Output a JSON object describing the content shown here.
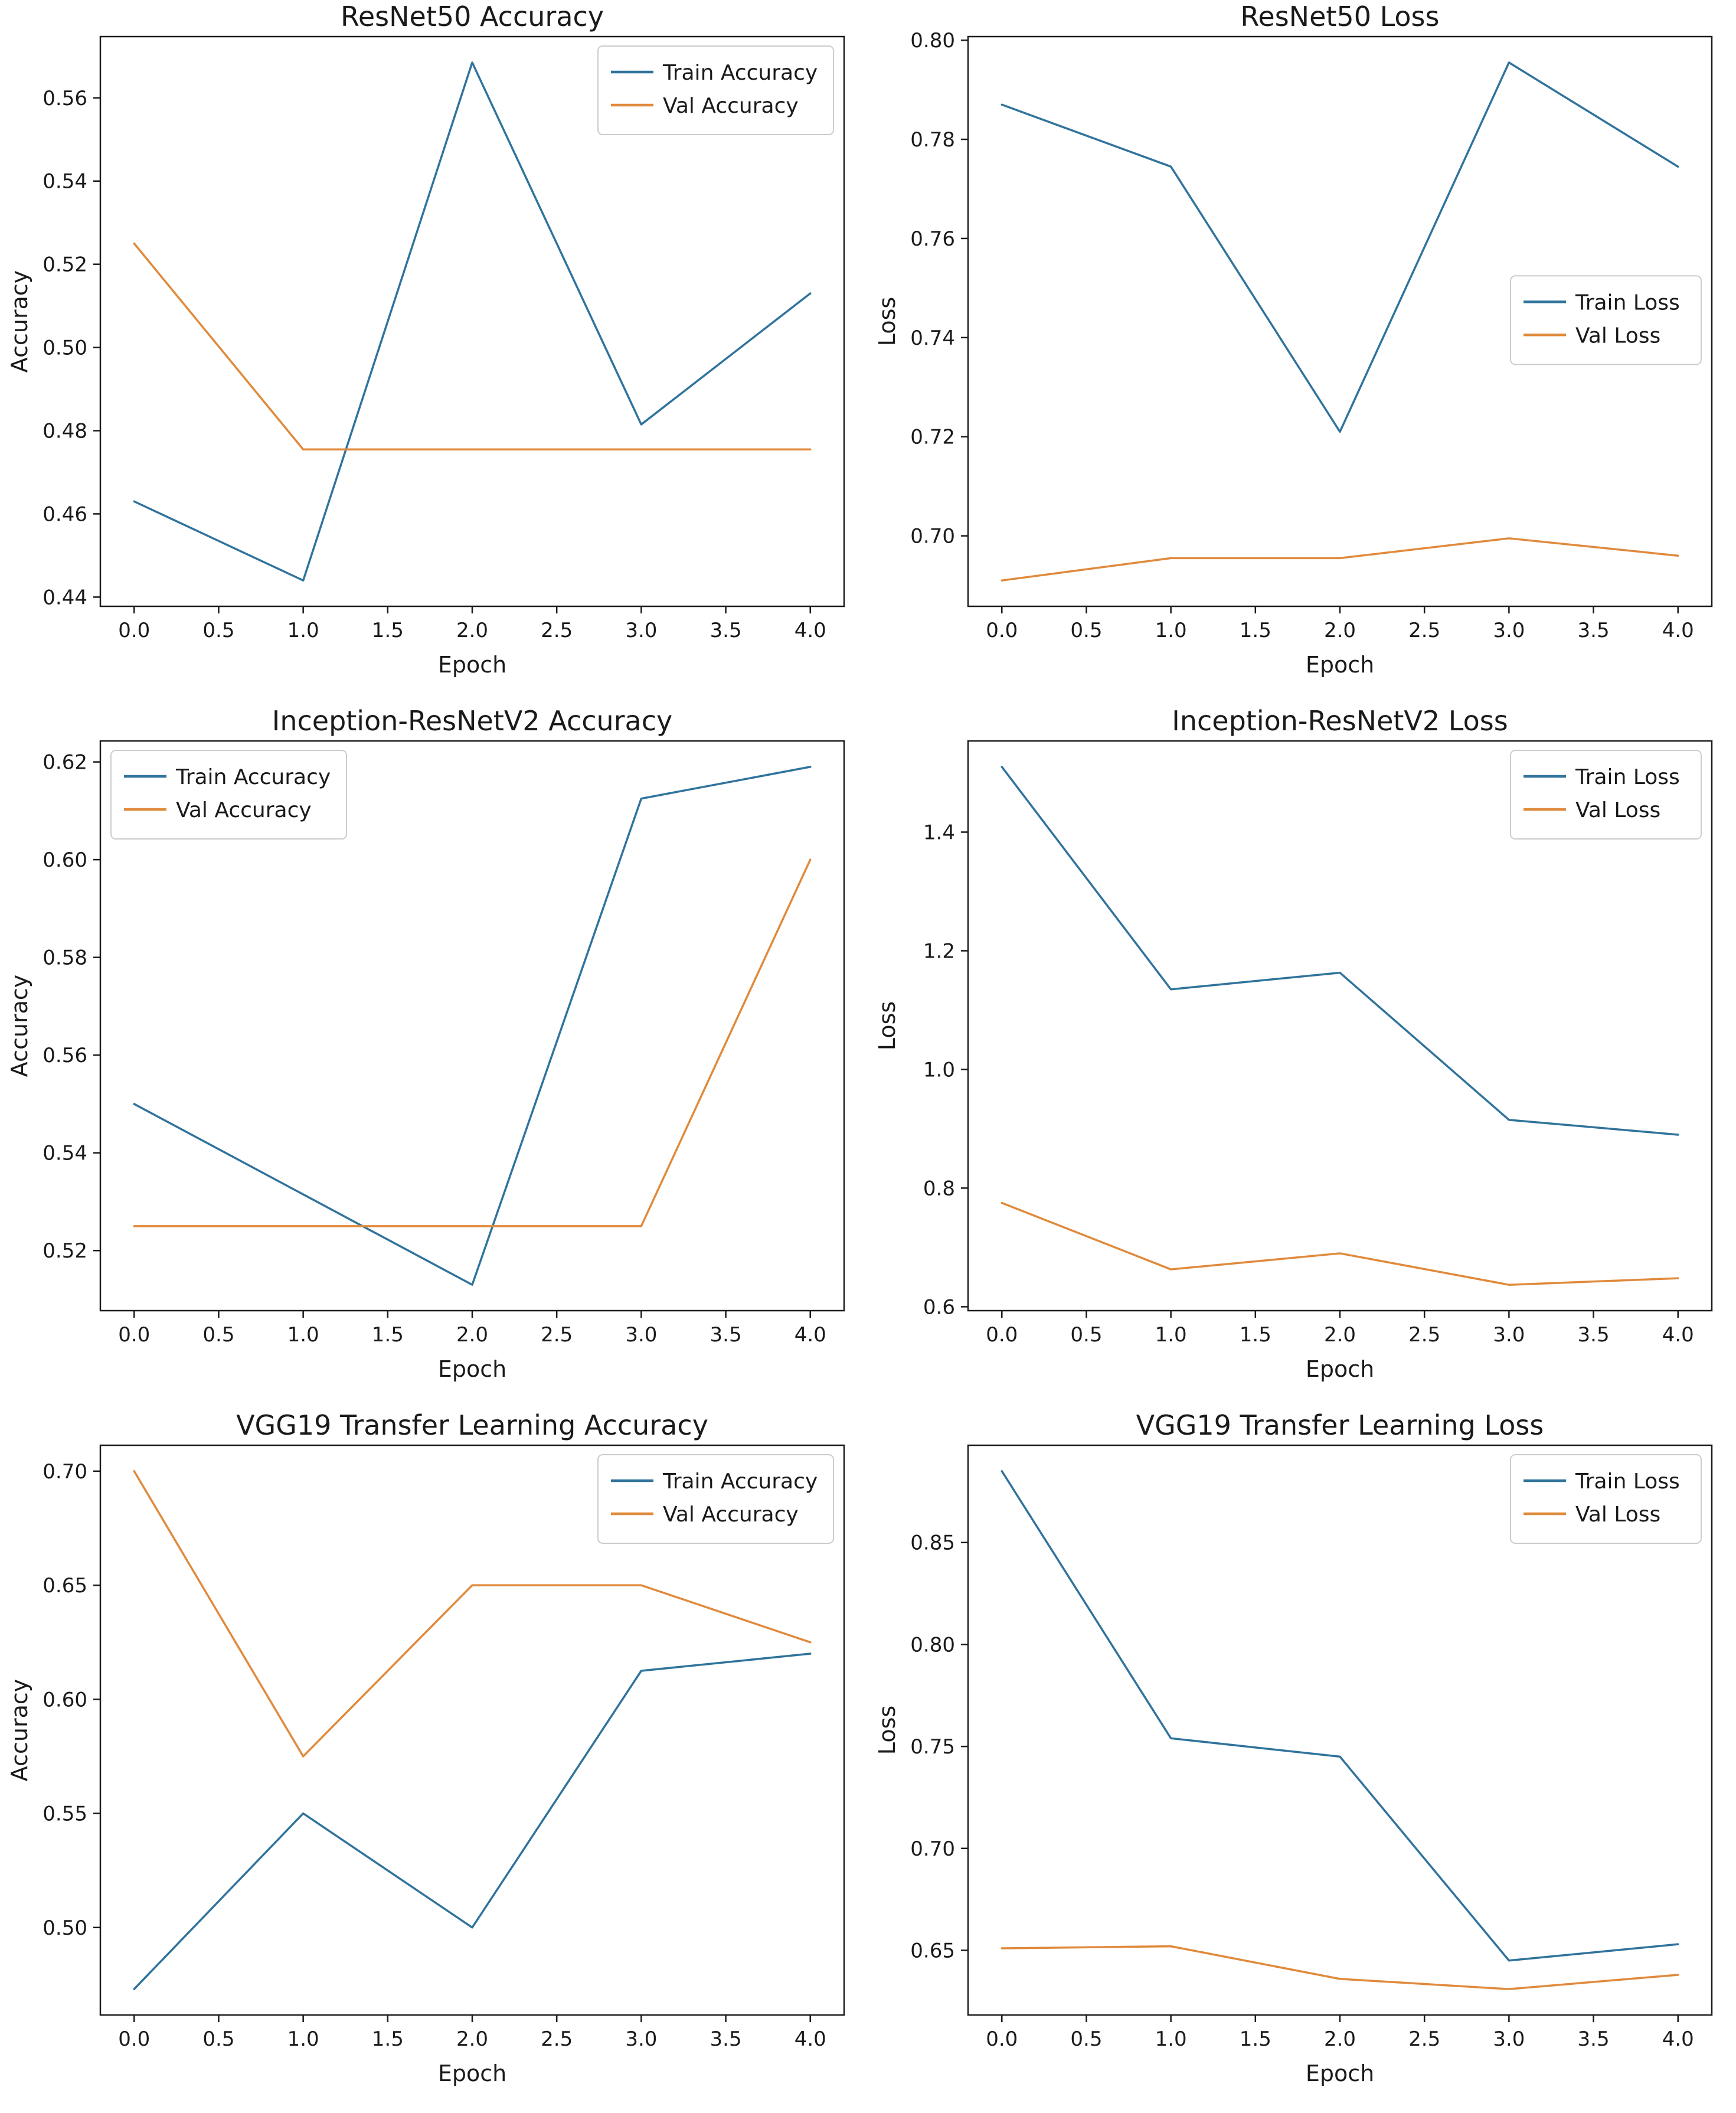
{
  "page": {
    "background": "#ffffff"
  },
  "colors": {
    "train": "#30739c",
    "val": "#e08a3c",
    "axis": "#1a1a1a",
    "legend_bg": "#ffffff",
    "legend_border": "#cccccc"
  },
  "chart_data": [
    {
      "type": "line",
      "title": "ResNet50 Accuracy",
      "xlabel": "Epoch",
      "ylabel": "Accuracy",
      "x": [
        0,
        1,
        2,
        3,
        4
      ],
      "xlim": [
        -0.2,
        4.2
      ],
      "ylim": [
        0.43778,
        0.57473
      ],
      "xticks": [
        0,
        0.5,
        1,
        1.5,
        2,
        2.5,
        3,
        3.5,
        4
      ],
      "xtick_labels": [
        "0.0",
        "0.5",
        "1.0",
        "1.5",
        "2.0",
        "2.5",
        "3.0",
        "3.5",
        "4.0"
      ],
      "yticks": [
        0.44,
        0.46,
        0.48,
        0.5,
        0.52,
        0.54,
        0.56
      ],
      "ytick_labels": [
        "0.44",
        "0.46",
        "0.48",
        "0.50",
        "0.52",
        "0.54",
        "0.56"
      ],
      "grid": false,
      "legend_position": "top-right",
      "series": [
        {
          "name": "Train Accuracy",
          "color_key": "train",
          "values": [
            0.463,
            0.444,
            0.5685,
            0.4815,
            0.513
          ]
        },
        {
          "name": "Val Accuracy",
          "color_key": "val",
          "values": [
            0.525,
            0.4755,
            0.4755,
            0.4755,
            0.4755
          ]
        }
      ]
    },
    {
      "type": "line",
      "title": "ResNet50 Loss",
      "xlabel": "Epoch",
      "ylabel": "Loss",
      "x": [
        0,
        1,
        2,
        3,
        4
      ],
      "xlim": [
        -0.2,
        4.2
      ],
      "ylim": [
        0.68578,
        0.80073
      ],
      "xticks": [
        0,
        0.5,
        1,
        1.5,
        2,
        2.5,
        3,
        3.5,
        4
      ],
      "xtick_labels": [
        "0.0",
        "0.5",
        "1.0",
        "1.5",
        "2.0",
        "2.5",
        "3.0",
        "3.5",
        "4.0"
      ],
      "yticks": [
        0.7,
        0.72,
        0.74,
        0.76,
        0.78,
        0.8
      ],
      "ytick_labels": [
        "0.70",
        "0.72",
        "0.74",
        "0.76",
        "0.78",
        "0.80"
      ],
      "grid": false,
      "legend_position": "center-right",
      "series": [
        {
          "name": "Train Loss",
          "color_key": "train",
          "values": [
            0.787,
            0.7745,
            0.721,
            0.7955,
            0.7745
          ]
        },
        {
          "name": "Val Loss",
          "color_key": "val",
          "values": [
            0.691,
            0.6955,
            0.6955,
            0.6995,
            0.696
          ]
        }
      ]
    },
    {
      "type": "line",
      "title": "Inception-ResNetV2 Accuracy",
      "xlabel": "Epoch",
      "ylabel": "Accuracy",
      "x": [
        0,
        1,
        2,
        3,
        4
      ],
      "xlim": [
        -0.2,
        4.2
      ],
      "ylim": [
        0.5077,
        0.6243
      ],
      "xticks": [
        0,
        0.5,
        1,
        1.5,
        2,
        2.5,
        3,
        3.5,
        4
      ],
      "xtick_labels": [
        "0.0",
        "0.5",
        "1.0",
        "1.5",
        "2.0",
        "2.5",
        "3.0",
        "3.5",
        "4.0"
      ],
      "yticks": [
        0.52,
        0.54,
        0.56,
        0.58,
        0.6,
        0.62
      ],
      "ytick_labels": [
        "0.52",
        "0.54",
        "0.56",
        "0.58",
        "0.60",
        "0.62"
      ],
      "grid": false,
      "legend_position": "top-left",
      "series": [
        {
          "name": "Train Accuracy",
          "color_key": "train",
          "values": [
            0.55,
            0.5315,
            0.513,
            0.6125,
            0.619
          ]
        },
        {
          "name": "Val Accuracy",
          "color_key": "val",
          "values": [
            0.525,
            0.525,
            0.525,
            0.525,
            0.6
          ]
        }
      ]
    },
    {
      "type": "line",
      "title": "Inception-ResNetV2 Loss",
      "xlabel": "Epoch",
      "ylabel": "Loss",
      "x": [
        0,
        1,
        2,
        3,
        4
      ],
      "xlim": [
        -0.2,
        4.2
      ],
      "ylim": [
        0.5934,
        1.5537
      ],
      "xticks": [
        0,
        0.5,
        1,
        1.5,
        2,
        2.5,
        3,
        3.5,
        4
      ],
      "xtick_labels": [
        "0.0",
        "0.5",
        "1.0",
        "1.5",
        "2.0",
        "2.5",
        "3.0",
        "3.5",
        "4.0"
      ],
      "yticks": [
        0.6,
        0.8,
        1.0,
        1.2,
        1.4
      ],
      "ytick_labels": [
        "0.6",
        "0.8",
        "1.0",
        "1.2",
        "1.4"
      ],
      "grid": false,
      "legend_position": "top-right",
      "series": [
        {
          "name": "Train Loss",
          "color_key": "train",
          "values": [
            1.51,
            1.135,
            1.163,
            0.915,
            0.89
          ]
        },
        {
          "name": "Val Loss",
          "color_key": "val",
          "values": [
            0.775,
            0.663,
            0.69,
            0.637,
            0.648
          ]
        }
      ]
    },
    {
      "type": "line",
      "title": "VGG19 Transfer Learning Accuracy",
      "xlabel": "Epoch",
      "ylabel": "Accuracy",
      "x": [
        0,
        1,
        2,
        3,
        4
      ],
      "xlim": [
        -0.2,
        4.2
      ],
      "ylim": [
        0.46165,
        0.71135
      ],
      "xticks": [
        0,
        0.5,
        1,
        1.5,
        2,
        2.5,
        3,
        3.5,
        4
      ],
      "xtick_labels": [
        "0.0",
        "0.5",
        "1.0",
        "1.5",
        "2.0",
        "2.5",
        "3.0",
        "3.5",
        "4.0"
      ],
      "yticks": [
        0.5,
        0.55,
        0.6,
        0.65,
        0.7
      ],
      "ytick_labels": [
        "0.50",
        "0.55",
        "0.60",
        "0.65",
        "0.70"
      ],
      "grid": false,
      "legend_position": "top-right",
      "series": [
        {
          "name": "Train Accuracy",
          "color_key": "train",
          "values": [
            0.473,
            0.55,
            0.5,
            0.6125,
            0.62
          ]
        },
        {
          "name": "Val Accuracy",
          "color_key": "val",
          "values": [
            0.7,
            0.575,
            0.65,
            0.65,
            0.625
          ]
        }
      ]
    },
    {
      "type": "line",
      "title": "VGG19 Transfer Learning Loss",
      "xlabel": "Epoch",
      "ylabel": "Loss",
      "x": [
        0,
        1,
        2,
        3,
        4
      ],
      "xlim": [
        -0.2,
        4.2
      ],
      "ylim": [
        0.6183,
        0.8977
      ],
      "xticks": [
        0,
        0.5,
        1,
        1.5,
        2,
        2.5,
        3,
        3.5,
        4
      ],
      "xtick_labels": [
        "0.0",
        "0.5",
        "1.0",
        "1.5",
        "2.0",
        "2.5",
        "3.0",
        "3.5",
        "4.0"
      ],
      "yticks": [
        0.65,
        0.7,
        0.75,
        0.8,
        0.85
      ],
      "ytick_labels": [
        "0.65",
        "0.70",
        "0.75",
        "0.80",
        "0.85"
      ],
      "grid": false,
      "legend_position": "top-right",
      "series": [
        {
          "name": "Train Loss",
          "color_key": "train",
          "values": [
            0.885,
            0.754,
            0.745,
            0.645,
            0.653
          ]
        },
        {
          "name": "Val Loss",
          "color_key": "val",
          "values": [
            0.651,
            0.652,
            0.636,
            0.631,
            0.638
          ]
        }
      ]
    }
  ]
}
